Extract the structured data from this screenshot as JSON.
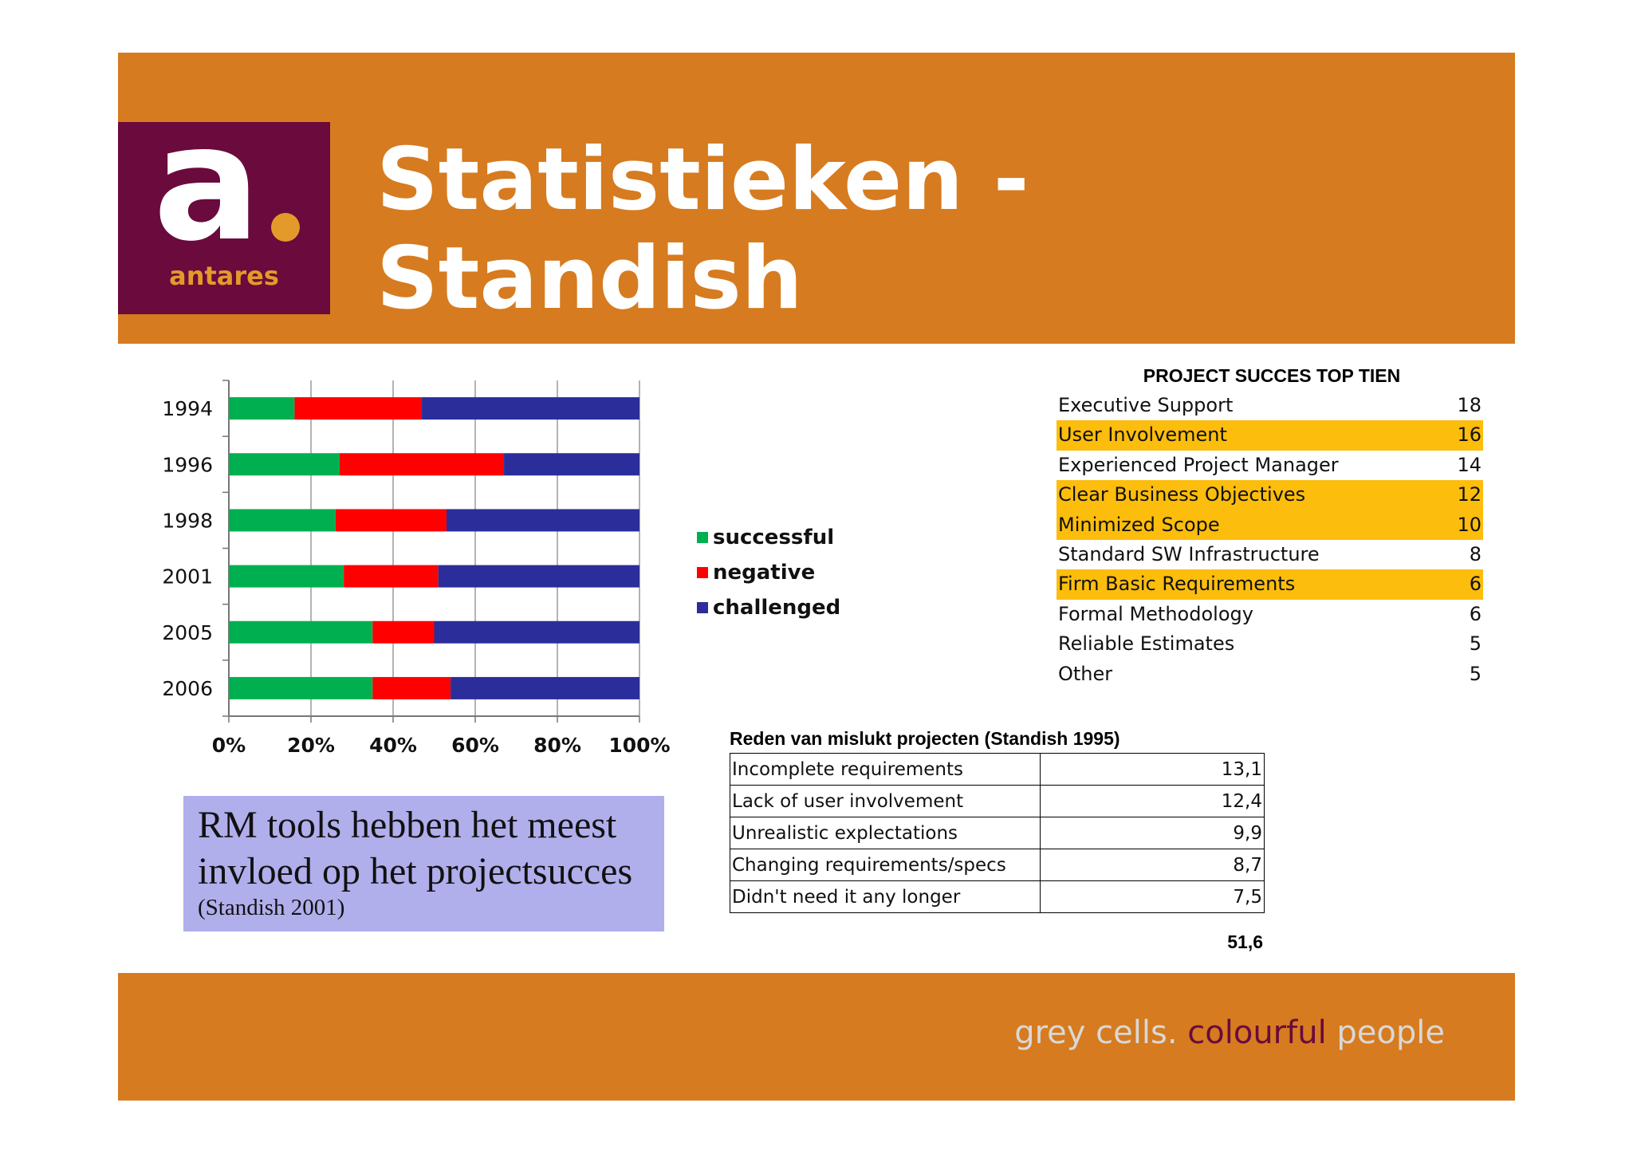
{
  "header": {
    "title_line1": "Statistieken -",
    "title_line2": "Standish",
    "logo": {
      "glyph": "a",
      "word": "antares"
    }
  },
  "footer": {
    "tagline_grey": "grey cells.",
    "tagline_purple": "colourful",
    "tagline_grey2": "people"
  },
  "chart_data": {
    "type": "bar",
    "orientation": "horizontal",
    "stacked": "percent",
    "categories": [
      "1994",
      "1996",
      "1998",
      "2001",
      "2005",
      "2006"
    ],
    "series": [
      {
        "name": "successful",
        "color": "#00b050",
        "values": [
          16,
          27,
          26,
          28,
          35,
          35
        ]
      },
      {
        "name": "negative",
        "color": "#ff0000",
        "values": [
          31,
          40,
          27,
          23,
          15,
          19
        ]
      },
      {
        "name": "challenged",
        "color": "#2b2d9a",
        "values": [
          53,
          33,
          47,
          49,
          50,
          46
        ]
      }
    ],
    "xticks": [
      "0%",
      "20%",
      "40%",
      "60%",
      "80%",
      "100%"
    ],
    "xlim": [
      0,
      100
    ],
    "legend_position": "right",
    "grid": true
  },
  "top_ten": {
    "title": "PROJECT SUCCES TOP TIEN",
    "rows": [
      {
        "label": "Executive Support",
        "value": "18",
        "highlight": false
      },
      {
        "label": "User Involvement",
        "value": "16",
        "highlight": true
      },
      {
        "label": "Experienced Project Manager",
        "value": "14",
        "highlight": false
      },
      {
        "label": "Clear Business Objectives",
        "value": "12",
        "highlight": true
      },
      {
        "label": "Minimized Scope",
        "value": "10",
        "highlight": true
      },
      {
        "label": "Standard SW Infrastructure",
        "value": "8",
        "highlight": false
      },
      {
        "label": "Firm Basic Requirements",
        "value": "6",
        "highlight": true
      },
      {
        "label": "Formal Methodology",
        "value": "6",
        "highlight": false
      },
      {
        "label": "Reliable Estimates",
        "value": "5",
        "highlight": false
      },
      {
        "label": "Other",
        "value": "5",
        "highlight": false
      }
    ]
  },
  "reasons": {
    "title": "Reden van mislukt projecten (Standish 1995)",
    "rows": [
      {
        "label": "Incomplete requirements",
        "value": "13,1"
      },
      {
        "label": "Lack of user involvement",
        "value": "12,4"
      },
      {
        "label": "Unrealistic explectations",
        "value": "9,9"
      },
      {
        "label": "Changing requirements/specs",
        "value": "8,7"
      },
      {
        "label": "Didn't need it any longer",
        "value": "7,5"
      }
    ],
    "total": "51,6"
  },
  "quote": {
    "text": "RM tools hebben het meest invloed op het projectsucces",
    "citation": "(Standish 2001)"
  },
  "colors": {
    "orange": "#d67b1f",
    "purple": "#6a0a3d",
    "highlight": "#fcbd0c",
    "quote_bg": "#b1aeec"
  }
}
